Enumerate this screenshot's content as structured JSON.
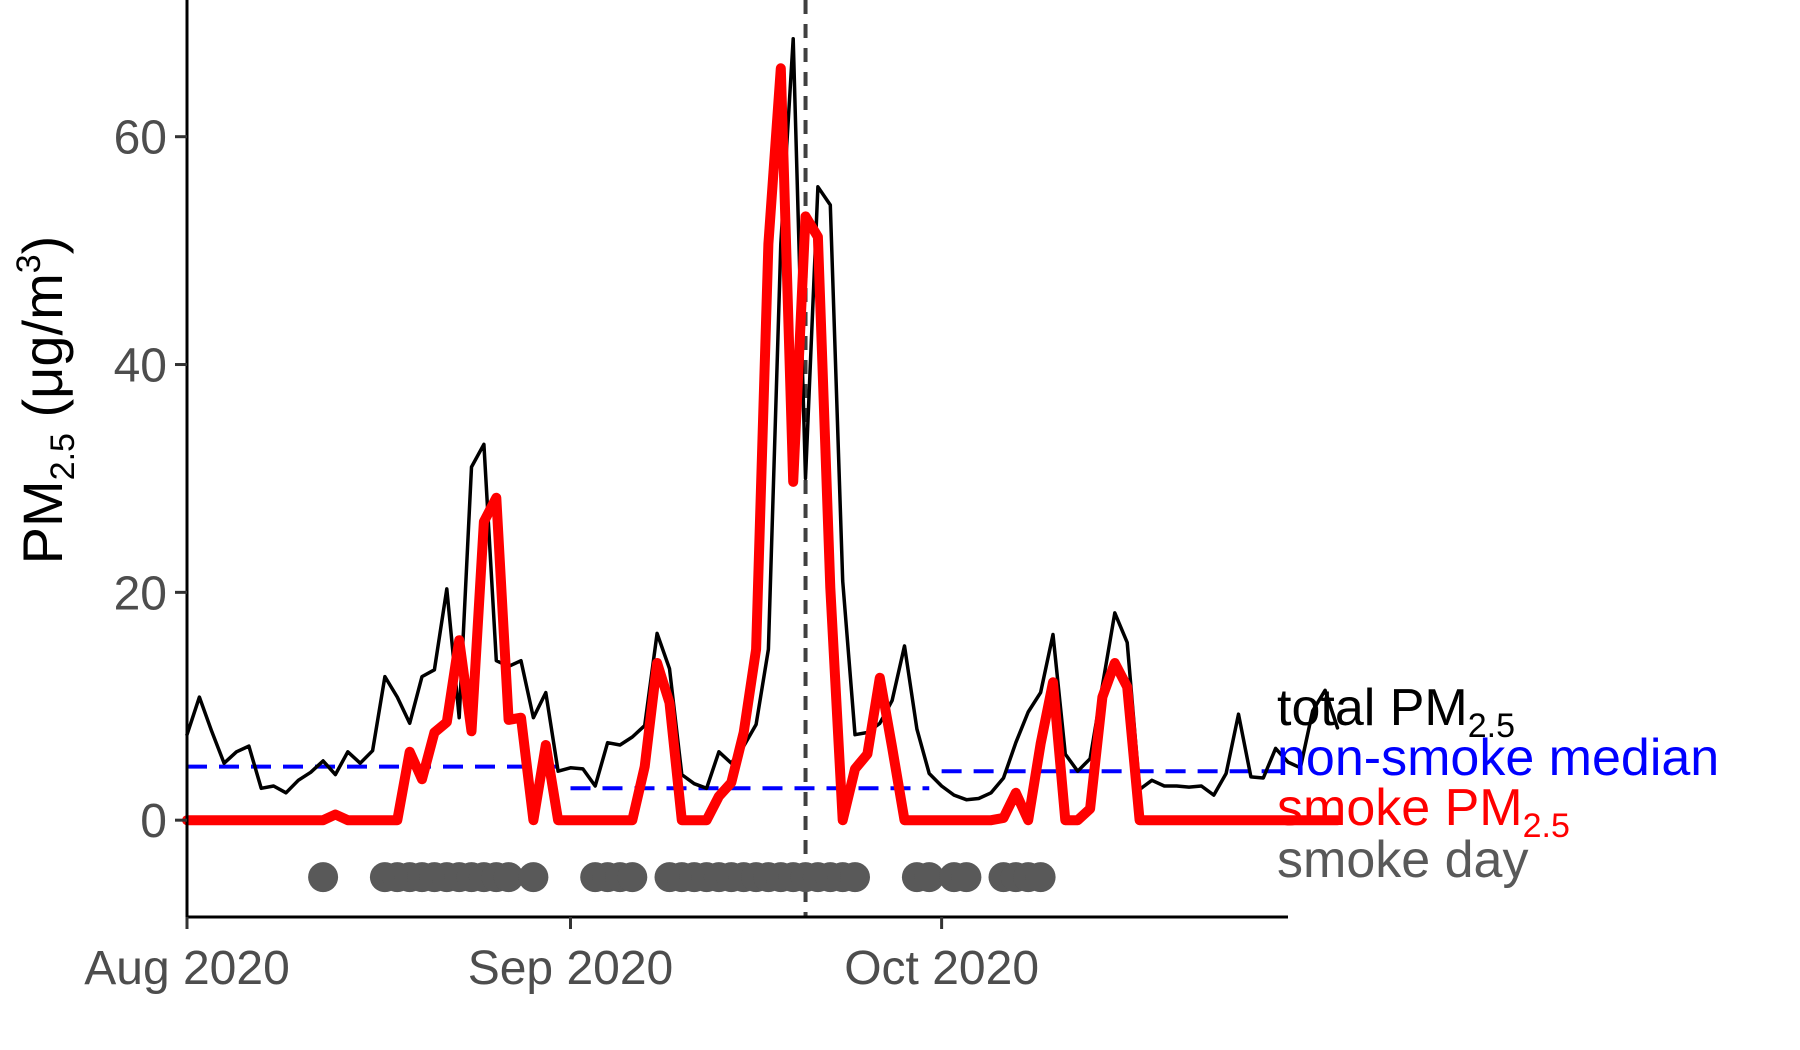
{
  "chart_data": {
    "type": "line",
    "title": "",
    "xlabel": "",
    "ylabel": {
      "prefix": "PM",
      "subscript": "2.5",
      "unit_open": " (",
      "unit_mu": "μ",
      "unit_rest": "g/m",
      "unit_sup": "3",
      "unit_close": ")"
    },
    "x_start": "2020-08-01",
    "x_end": "2020-10-29",
    "ylim": [
      -8.5,
      72
    ],
    "y_ticks": [
      {
        "value": 0,
        "label": "0"
      },
      {
        "value": 20,
        "label": "20"
      },
      {
        "value": 40,
        "label": "40"
      },
      {
        "value": 60,
        "label": "60"
      }
    ],
    "x_ticks": [
      {
        "date": "2020-08-01",
        "label": "Aug 2020"
      },
      {
        "date": "2020-09-01",
        "label": "Sep 2020"
      },
      {
        "date": "2020-10-01",
        "label": "Oct 2020"
      }
    ],
    "event_date": "2020-09-20",
    "grid": false,
    "series": [
      {
        "name": "total PM2.5",
        "color": "#000000",
        "values": [
          7.5,
          10.8,
          7.8,
          5,
          6,
          6.5,
          2.8,
          3,
          2.4,
          3.5,
          4.2,
          5.2,
          4,
          6,
          5,
          6.1,
          12.6,
          10.8,
          8.5,
          12.6,
          13.2,
          20.3,
          9,
          31,
          33,
          14,
          13.5,
          14,
          9,
          11.2,
          4.3,
          4.6,
          4.5,
          3,
          6.8,
          6.6,
          7.3,
          8.3,
          16.4,
          13.3,
          4,
          3.2,
          2.8,
          6,
          5,
          6.5,
          8.4,
          15,
          50.6,
          68.6,
          30,
          55.6,
          54,
          21,
          7.5,
          7.7,
          8.5,
          10.5,
          15.3,
          8,
          4.1,
          3,
          2.2,
          1.8,
          1.9,
          2.4,
          3.7,
          6.8,
          9.5,
          11.2,
          16.3,
          5.8,
          4.3,
          5.4,
          11.8,
          18.2,
          15.6,
          2.7,
          3.5,
          3,
          3,
          2.9,
          3,
          2.2,
          4.1,
          9.3,
          3.8,
          3.7,
          6.3,
          5.1,
          4.6,
          9.6,
          11.4,
          8.1
        ]
      },
      {
        "name": "smoke PM2.5",
        "color": "#ff0000",
        "values": [
          0,
          0,
          0,
          0,
          0,
          0,
          0,
          0,
          0,
          0,
          0,
          0,
          0.5,
          0,
          0,
          0,
          0,
          0,
          6,
          3.6,
          7.7,
          8.6,
          15.8,
          7.8,
          26.2,
          28.3,
          8.8,
          9,
          0,
          6.6,
          0,
          0,
          0,
          0,
          0,
          0,
          0,
          4.7,
          13.8,
          10.3,
          0,
          0,
          0,
          2.1,
          3.3,
          7.7,
          15,
          50.6,
          66,
          29.7,
          53,
          51.2,
          20.4,
          0,
          4.5,
          5.8,
          12.5,
          6.4,
          0,
          0,
          0,
          0,
          0,
          0,
          0,
          0,
          0.2,
          2.4,
          0,
          6.7,
          12.1,
          0,
          0,
          1,
          10.8,
          13.8,
          11.7,
          0,
          0,
          0,
          0,
          0,
          0,
          0,
          0,
          0,
          0,
          0,
          0,
          0,
          0,
          0,
          0,
          0
        ]
      }
    ],
    "median_segments": [
      {
        "name": "non-smoke median",
        "color": "#0000ff",
        "from": "2020-08-01",
        "to": "2020-08-31",
        "value": 4.7
      },
      {
        "name": "non-smoke median",
        "color": "#0000ff",
        "from": "2020-09-01",
        "to": "2020-09-30",
        "value": 2.8
      },
      {
        "name": "non-smoke median",
        "color": "#0000ff",
        "from": "2020-10-01",
        "to": "2020-10-29",
        "value": 4.3
      }
    ],
    "smoke_day_dot_y": -5,
    "smoke_day_dot_color": "#595959",
    "smoke_days": [
      "2020-08-12",
      "2020-08-17",
      "2020-08-18",
      "2020-08-19",
      "2020-08-20",
      "2020-08-21",
      "2020-08-22",
      "2020-08-23",
      "2020-08-24",
      "2020-08-25",
      "2020-08-26",
      "2020-08-27",
      "2020-08-29",
      "2020-09-03",
      "2020-09-04",
      "2020-09-05",
      "2020-09-06",
      "2020-09-09",
      "2020-09-10",
      "2020-09-11",
      "2020-09-12",
      "2020-09-13",
      "2020-09-14",
      "2020-09-15",
      "2020-09-16",
      "2020-09-17",
      "2020-09-18",
      "2020-09-19",
      "2020-09-20",
      "2020-09-21",
      "2020-09-22",
      "2020-09-23",
      "2020-09-24",
      "2020-09-29",
      "2020-09-30",
      "2020-10-02",
      "2020-10-03",
      "2020-10-06",
      "2020-10-07",
      "2020-10-08",
      "2020-10-09"
    ],
    "legend": {
      "placement": "right",
      "items": [
        {
          "key": "total",
          "text": "total PM",
          "sub": "2.5",
          "color": "#000000"
        },
        {
          "key": "median",
          "text": "non-smoke median",
          "sub": "",
          "color": "#0000ff"
        },
        {
          "key": "smoke",
          "text": "smoke PM",
          "sub": "2.5",
          "color": "#ff0000"
        },
        {
          "key": "smokeday",
          "text": "smoke day",
          "sub": "",
          "color": "#595959"
        }
      ]
    }
  }
}
